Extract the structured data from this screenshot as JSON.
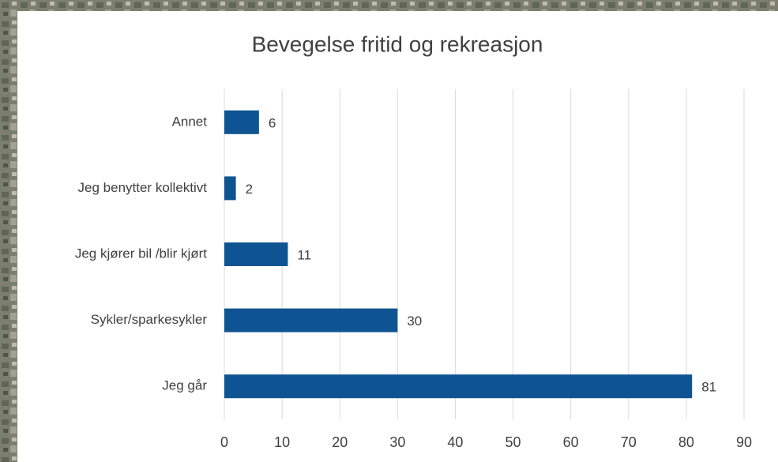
{
  "chart_data": {
    "type": "bar",
    "orientation": "horizontal",
    "title": "Bevegelse fritid og rekreasjon",
    "categories": [
      "Annet",
      "Jeg benytter kollektivt",
      "Jeg kjører bil /blir kjørt",
      "Sykler/sparkesykler",
      "Jeg går"
    ],
    "values": [
      6,
      2,
      11,
      30,
      81
    ],
    "color": "#0f5492",
    "xlim": [
      0,
      90
    ],
    "xticks": [
      0,
      10,
      20,
      30,
      40,
      50,
      60,
      70,
      80,
      90
    ],
    "grid": true
  }
}
